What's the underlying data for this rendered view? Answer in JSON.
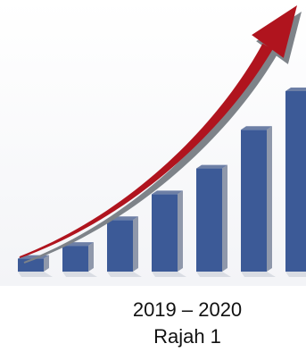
{
  "chart_data": {
    "type": "bar",
    "categories": [
      "",
      "",
      "",
      "",
      "",
      "",
      ""
    ],
    "values": [
      1,
      2,
      4,
      6,
      8,
      11,
      14
    ],
    "trend_arrow": true,
    "grid": false,
    "colors": {
      "bar_front": "#3c5a97",
      "bar_side": "#8f98ab",
      "bar_top": "#6d7fa6",
      "arrow": "#b0141e",
      "arrow_shadow": "#7e8389"
    }
  },
  "caption": {
    "years": "2019 – 2020",
    "figure": "Rajah 1"
  }
}
